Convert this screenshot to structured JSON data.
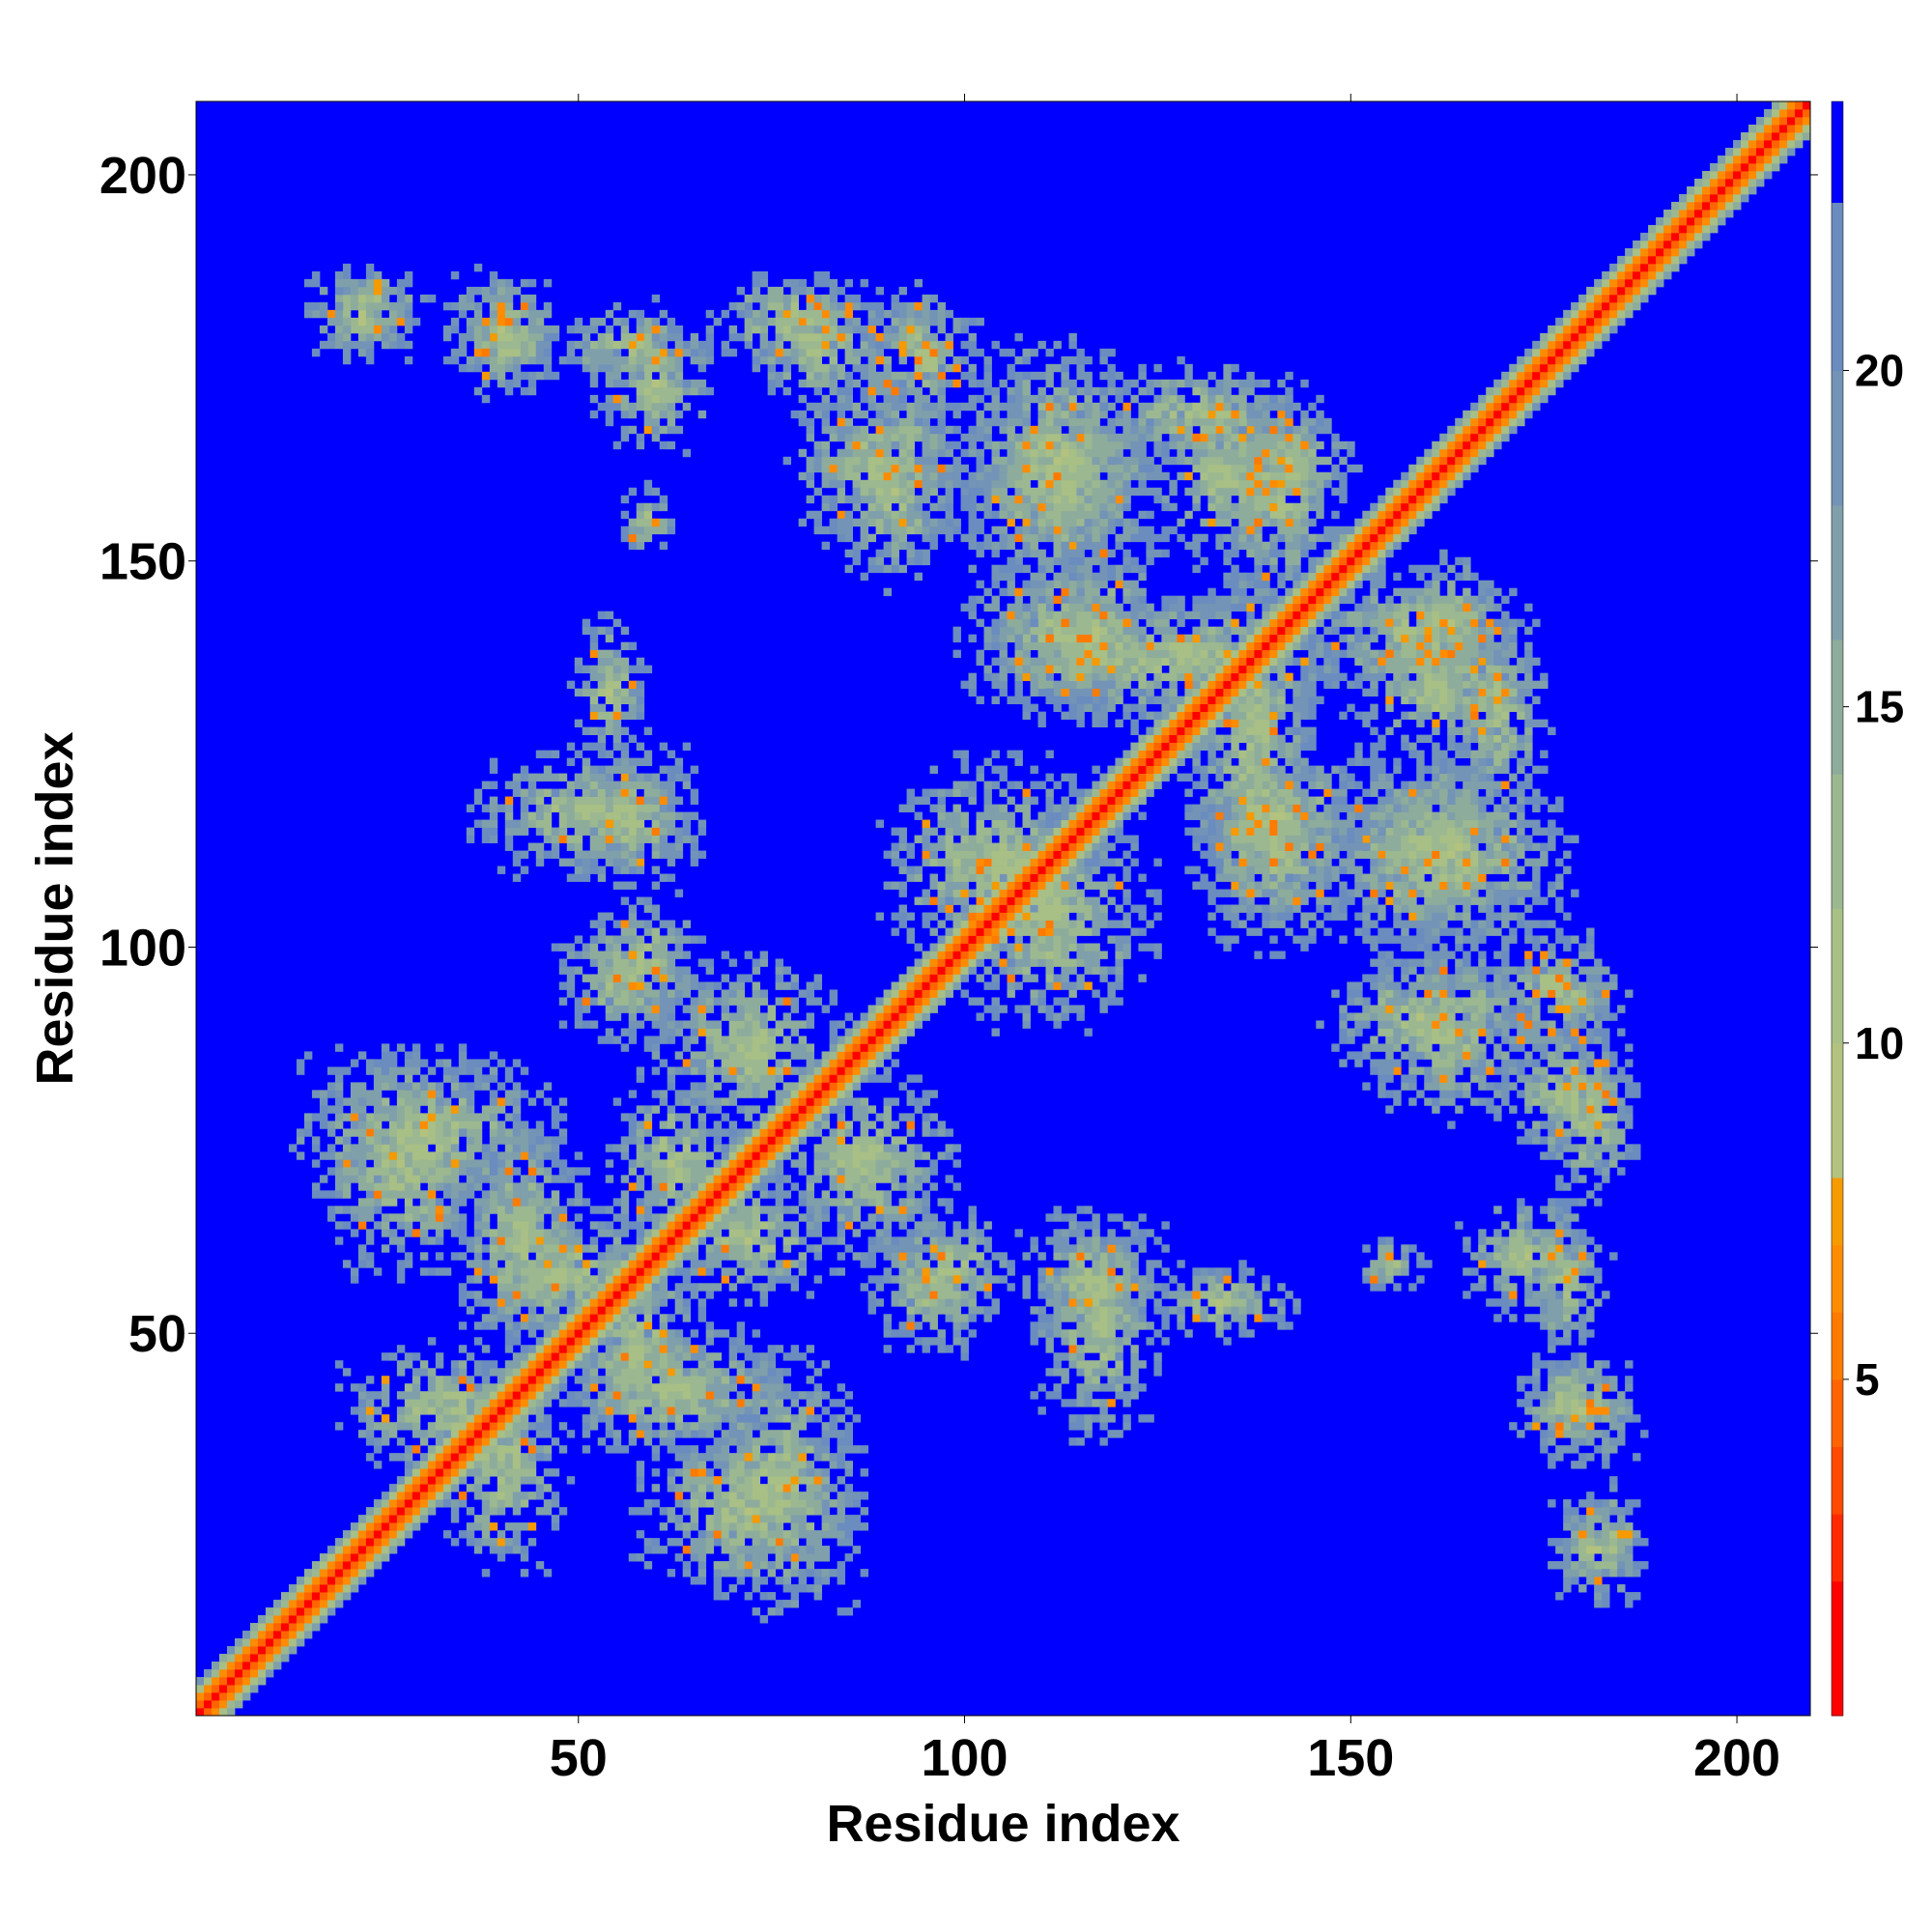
{
  "chart_data": {
    "type": "heatmap",
    "title": "",
    "xlabel": "Residue index",
    "ylabel": "Residue index",
    "xlim": [
      0.5,
      209.5
    ],
    "ylim": [
      0.5,
      209.5
    ],
    "x_ticks": [
      50,
      100,
      150,
      200
    ],
    "y_ticks": [
      50,
      100,
      150,
      200
    ],
    "colorbar": {
      "ticks": [
        5,
        10,
        15,
        20
      ],
      "range": [
        0,
        24
      ],
      "bands": [
        {
          "from": 0,
          "to": 2,
          "color": "#ff0000"
        },
        {
          "from": 2,
          "to": 3,
          "color": "#ff2a00"
        },
        {
          "from": 3,
          "to": 4,
          "color": "#ff4a00"
        },
        {
          "from": 4,
          "to": 5,
          "color": "#ff6400"
        },
        {
          "from": 5,
          "to": 6,
          "color": "#ff7a00"
        },
        {
          "from": 6,
          "to": 7,
          "color": "#ff8c00"
        },
        {
          "from": 7,
          "to": 8,
          "color": "#f59a00"
        },
        {
          "from": 8,
          "to": 10,
          "color": "#b3c27e"
        },
        {
          "from": 10,
          "to": 12,
          "color": "#a8bf86"
        },
        {
          "from": 12,
          "to": 14,
          "color": "#9cb890"
        },
        {
          "from": 14,
          "to": 16,
          "color": "#8eac9c"
        },
        {
          "from": 16,
          "to": 18,
          "color": "#7f9fab"
        },
        {
          "from": 18,
          "to": 20,
          "color": "#7394b6"
        },
        {
          "from": 20,
          "to": 22.5,
          "color": "#6a8cbe"
        },
        {
          "from": 22.5,
          "to": 24,
          "color": "#0000ff"
        }
      ]
    },
    "background_color": "#0000ff",
    "n_residues": 209,
    "diagonal_band_halfwidth": 4,
    "clusters": [
      {
        "x": [
          15,
          30
        ],
        "y": [
          180,
          187
        ]
      },
      {
        "x": [
          34,
          48
        ],
        "y": [
          172,
          185
        ]
      },
      {
        "x": [
          53,
          67
        ],
        "y": [
          165,
          180
        ]
      },
      {
        "x": [
          72,
          90
        ],
        "y": [
          170,
          186
        ]
      },
      {
        "x": [
          78,
          101
        ],
        "y": [
          150,
          175
        ]
      },
      {
        "x": [
          56,
          62
        ],
        "y": [
          151,
          159
        ]
      },
      {
        "x": [
          100,
          124
        ],
        "y": [
          148,
          178
        ]
      },
      {
        "x": [
          109,
          125
        ],
        "y": [
          129,
          152
        ]
      },
      {
        "x": [
          124,
          144
        ],
        "y": [
          150,
          172
        ]
      },
      {
        "x": [
          135,
          150
        ],
        "y": [
          155,
          170
        ]
      },
      {
        "x": [
          145,
          172
        ],
        "y": [
          133,
          148
        ]
      },
      {
        "x": [
          163,
          175
        ],
        "y": [
          118,
          143
        ]
      },
      {
        "x": [
          37,
          65
        ],
        "y": [
          110,
          125
        ]
      },
      {
        "x": [
          48,
          64
        ],
        "y": [
          88,
          104
        ]
      },
      {
        "x": [
          90,
          116
        ],
        "y": [
          98,
          124
        ]
      },
      {
        "x": [
          60,
          84
        ],
        "y": [
          76,
          98
        ]
      },
      {
        "x": [
          131,
          150
        ],
        "y": [
          102,
          122
        ]
      },
      {
        "x": [
          147,
          173
        ],
        "y": [
          100,
          125
        ]
      },
      {
        "x": [
          147,
          170
        ],
        "y": [
          83,
          98
        ]
      },
      {
        "x": [
          168,
          185
        ],
        "y": [
          87,
          102
        ]
      },
      {
        "x": [
          176,
          187
        ],
        "y": [
          68,
          88
        ]
      },
      {
        "x": [
          14,
          47
        ],
        "y": [
          66,
          86
        ]
      },
      {
        "x": [
          35,
          62
        ],
        "y": [
          50,
          65
        ]
      },
      {
        "x": [
          60,
          84
        ],
        "y": [
          55,
          70
        ]
      },
      {
        "x": [
          90,
          106
        ],
        "y": [
          52,
          65
        ]
      },
      {
        "x": [
          108,
          125
        ],
        "y": [
          48,
          65
        ]
      },
      {
        "x": [
          125,
          142
        ],
        "y": [
          50,
          58
        ]
      },
      {
        "x": [
          20,
          46
        ],
        "y": [
          33,
          48
        ]
      },
      {
        "x": [
          47,
          78
        ],
        "y": [
          35,
          50
        ]
      },
      {
        "x": [
          58,
          85
        ],
        "y": [
          17,
          38
        ]
      },
      {
        "x": [
          173,
          183
        ],
        "y": [
          48,
          66
        ]
      },
      {
        "x": [
          173,
          187
        ],
        "y": [
          34,
          46
        ]
      },
      {
        "x": [
          176,
          187
        ],
        "y": [
          16,
          28
        ]
      },
      {
        "x": [
          100,
          150
        ],
        "y": [
          130,
          145
        ]
      }
    ]
  }
}
